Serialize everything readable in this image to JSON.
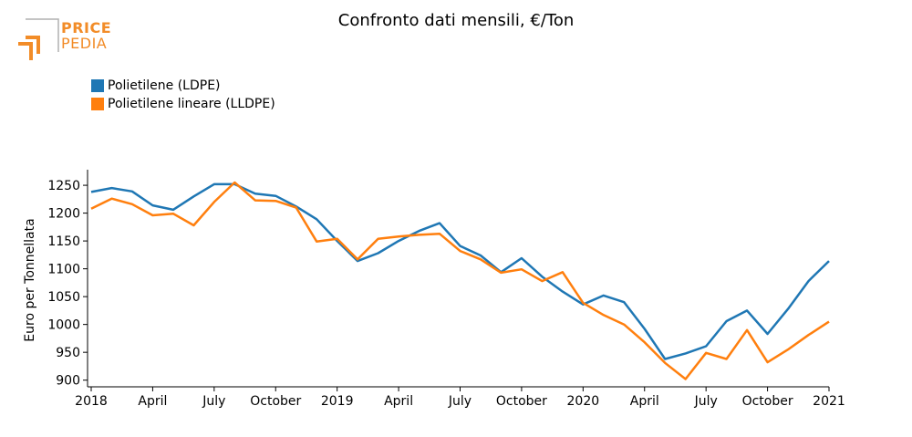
{
  "logo": {
    "line1": "PRICE",
    "line2": "PEDIA",
    "color": "#f28c28"
  },
  "chart_data": {
    "type": "line",
    "title": "Confronto dati mensili, €/Ton",
    "ylabel": "Euro per Tonnellata",
    "xlabel": "",
    "ylim": [
      888,
      1278
    ],
    "yticks": [
      900,
      950,
      1000,
      1050,
      1100,
      1150,
      1200,
      1250
    ],
    "xticks": [
      {
        "month": 0,
        "label": "2018"
      },
      {
        "month": 3,
        "label": "April"
      },
      {
        "month": 6,
        "label": "July"
      },
      {
        "month": 9,
        "label": "October"
      },
      {
        "month": 12,
        "label": "2019"
      },
      {
        "month": 15,
        "label": "April"
      },
      {
        "month": 18,
        "label": "July"
      },
      {
        "month": 21,
        "label": "October"
      },
      {
        "month": 24,
        "label": "2020"
      },
      {
        "month": 27,
        "label": "April"
      },
      {
        "month": 30,
        "label": "July"
      },
      {
        "month": 33,
        "label": "October"
      },
      {
        "month": 36,
        "label": "2021"
      }
    ],
    "xlim": [
      0,
      36
    ],
    "x": [
      0,
      1,
      2,
      3,
      4,
      5,
      6,
      7,
      8,
      9,
      10,
      11,
      12,
      13,
      14,
      15,
      16,
      17,
      18,
      19,
      20,
      21,
      22,
      23,
      24,
      25,
      26,
      27,
      28,
      29,
      30,
      31,
      32,
      33,
      34,
      35,
      36
    ],
    "legend_position": "top-left",
    "grid": false,
    "series": [
      {
        "name": "Polietilene (LDPE)",
        "color": "#1f77b4",
        "values": [
          1238,
          1245,
          1239,
          1214,
          1206,
          1230,
          1252,
          1252,
          1235,
          1231,
          1212,
          1189,
          1150,
          1114,
          1128,
          1150,
          1168,
          1182,
          1141,
          1124,
          1094,
          1119,
          1086,
          1059,
          1036,
          1052,
          1040,
          992,
          938,
          948,
          961,
          1006,
          1025,
          983,
          1028,
          1078,
          1114
        ]
      },
      {
        "name": "Polietilene lineare (LLDPE)",
        "color": "#ff7f0e",
        "values": [
          1208,
          1226,
          1216,
          1196,
          1199,
          1178,
          1220,
          1255,
          1223,
          1222,
          1210,
          1149,
          1154,
          1117,
          1154,
          1158,
          1161,
          1163,
          1132,
          1117,
          1093,
          1099,
          1078,
          1094,
          1039,
          1017,
          1000,
          968,
          931,
          902,
          949,
          938,
          990,
          932,
          955,
          981,
          1005
        ]
      }
    ]
  }
}
